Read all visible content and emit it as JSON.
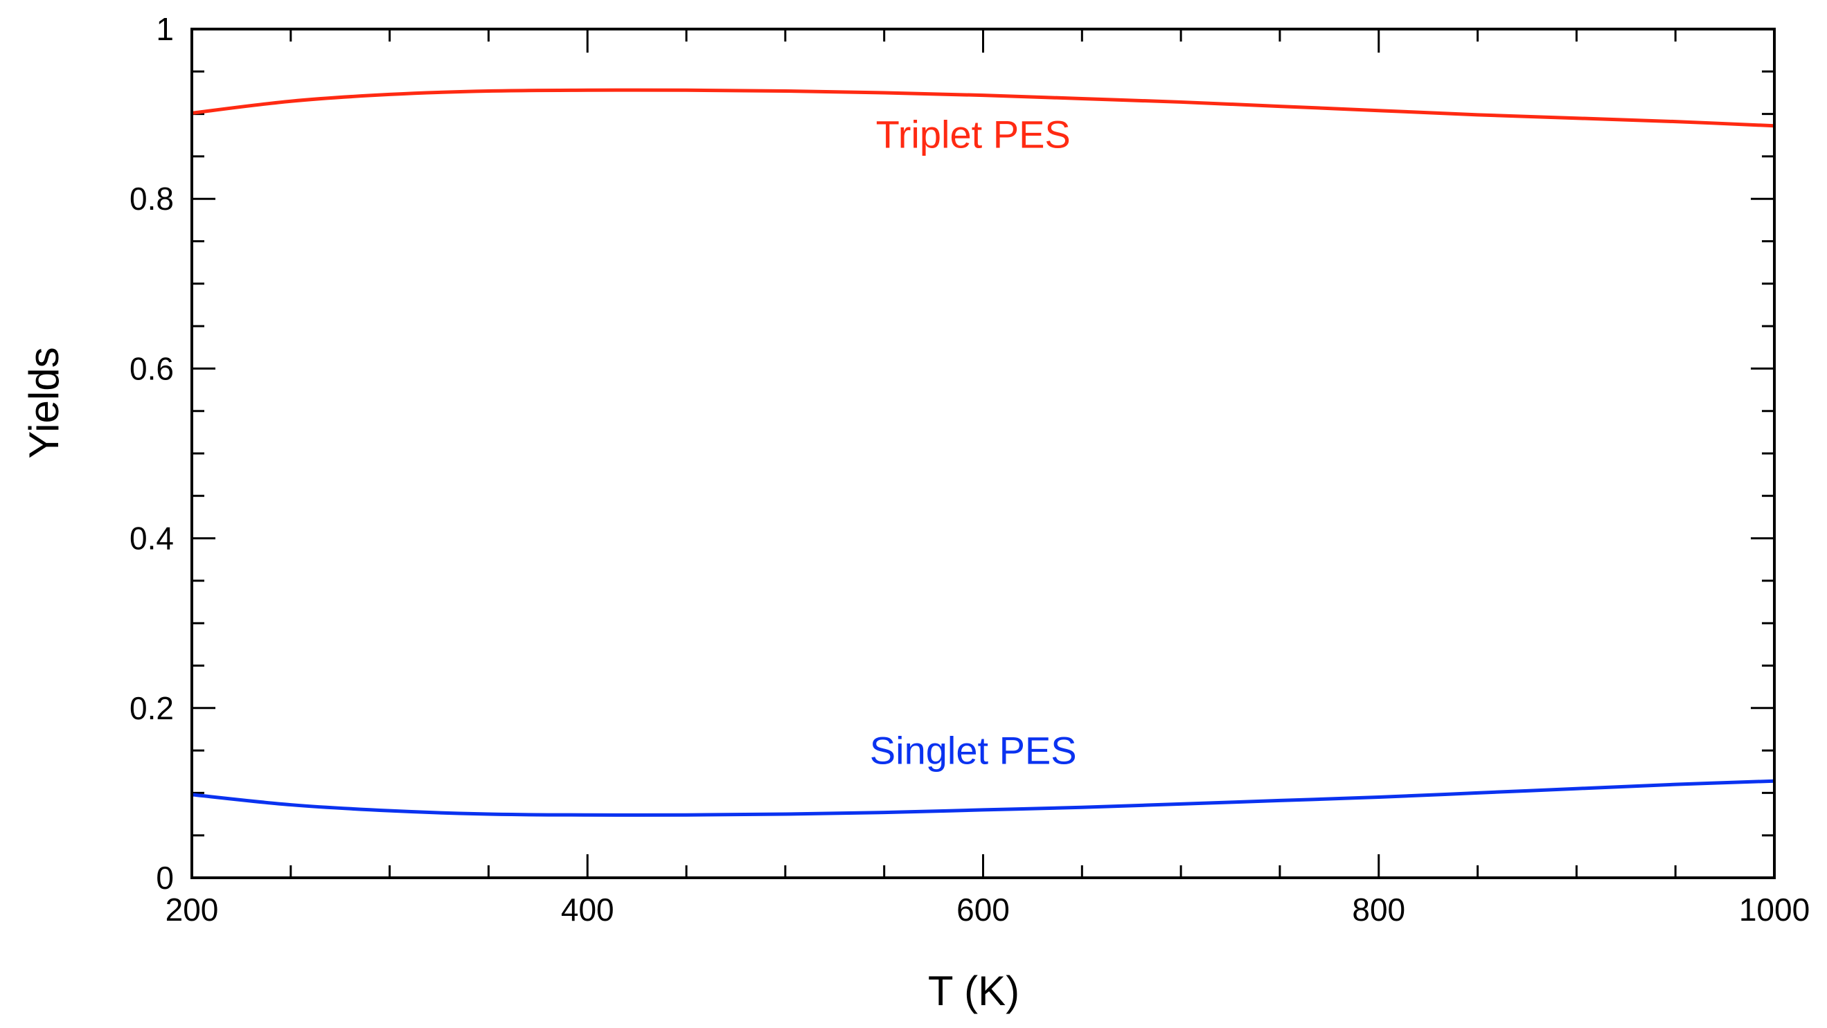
{
  "chart_data": {
    "type": "line",
    "title": "",
    "xlabel": "T (K)",
    "ylabel": "Yields",
    "xlim": [
      200,
      1000
    ],
    "ylim": [
      0,
      1
    ],
    "xticks": [
      200,
      400,
      600,
      800,
      1000
    ],
    "xtick_labels": [
      "200",
      "400",
      "600",
      "800",
      "1000"
    ],
    "xminor_step": 50,
    "yticks": [
      0,
      0.2,
      0.4,
      0.6,
      0.8,
      1
    ],
    "ytick_labels": [
      "0",
      "0.2",
      "0.4",
      "0.6",
      "0.8",
      "1"
    ],
    "yminor_step": 0.05,
    "grid": false,
    "series": [
      {
        "name": "Triplet PES",
        "color": "#ff2a12",
        "x": [
          200,
          250,
          300,
          350,
          400,
          450,
          500,
          550,
          600,
          650,
          700,
          750,
          800,
          850,
          900,
          950,
          1000
        ],
        "values": [
          0.901,
          0.915,
          0.923,
          0.927,
          0.928,
          0.928,
          0.927,
          0.925,
          0.922,
          0.918,
          0.914,
          0.909,
          0.904,
          0.899,
          0.895,
          0.891,
          0.886
        ]
      },
      {
        "name": "Singlet PES",
        "color": "#0a32f0",
        "x": [
          200,
          250,
          300,
          350,
          400,
          450,
          500,
          550,
          600,
          650,
          700,
          750,
          800,
          850,
          900,
          950,
          1000
        ],
        "values": [
          0.098,
          0.086,
          0.079,
          0.075,
          0.074,
          0.074,
          0.075,
          0.077,
          0.08,
          0.083,
          0.087,
          0.091,
          0.095,
          0.1,
          0.105,
          0.11,
          0.114
        ]
      }
    ],
    "annotations": [
      {
        "text": "Triplet PES",
        "x": 595,
        "y": 0.86,
        "color": "#ff2a12"
      },
      {
        "text": "Singlet PES",
        "x": 595,
        "y": 0.134,
        "color": "#0a32f0"
      }
    ]
  }
}
